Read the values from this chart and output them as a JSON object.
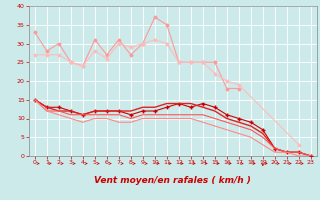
{
  "background_color": "#cceaea",
  "grid_color": "#ffffff",
  "xlabel": "Vent moyen/en rafales ( km/h )",
  "xlabel_color": "#cc0000",
  "xlim": [
    -0.5,
    23.5
  ],
  "ylim": [
    0,
    40
  ],
  "xticks": [
    0,
    1,
    2,
    3,
    4,
    5,
    6,
    7,
    8,
    9,
    10,
    11,
    12,
    13,
    14,
    15,
    16,
    17,
    18,
    19,
    20,
    21,
    22,
    23
  ],
  "yticks": [
    0,
    5,
    10,
    15,
    20,
    25,
    30,
    35,
    40
  ],
  "series": [
    {
      "x": [
        0,
        1,
        2,
        3,
        4,
        5,
        6,
        7,
        8,
        9,
        10,
        11,
        12,
        13,
        14,
        15,
        16,
        17
      ],
      "y": [
        33,
        28,
        30,
        25,
        24,
        31,
        27,
        31,
        27,
        30,
        37,
        35,
        25,
        25,
        25,
        25,
        18,
        18
      ],
      "color": "#ff9999",
      "marker": "D",
      "markersize": 1.5,
      "linewidth": 0.8,
      "linestyle": "-"
    },
    {
      "x": [
        0,
        1,
        2,
        3,
        4,
        5,
        6,
        7,
        8,
        9,
        10,
        11,
        12,
        13,
        14,
        15,
        16,
        17,
        22
      ],
      "y": [
        27,
        27,
        27,
        25,
        24,
        28,
        26,
        30,
        29,
        30,
        31,
        30,
        25,
        25,
        25,
        22,
        20,
        19,
        3
      ],
      "color": "#ffbbbb",
      "marker": "D",
      "markersize": 1.5,
      "linewidth": 0.8,
      "linestyle": "-"
    },
    {
      "x": [
        0,
        1,
        2,
        3,
        4,
        5,
        6,
        7,
        8,
        9,
        10,
        11,
        12,
        13,
        14,
        15,
        16,
        17,
        18,
        19,
        20,
        21,
        22,
        23
      ],
      "y": [
        15,
        13,
        13,
        12,
        11,
        12,
        12,
        12,
        11,
        12,
        12,
        13,
        14,
        13,
        14,
        13,
        11,
        10,
        9,
        7,
        2,
        1,
        1,
        0
      ],
      "color": "#cc0000",
      "marker": "+",
      "markersize": 3,
      "linewidth": 0.8,
      "linestyle": "-"
    },
    {
      "x": [
        0,
        1,
        2,
        3,
        4,
        5,
        6,
        7,
        8,
        9,
        10,
        11,
        12,
        13,
        14,
        15,
        16,
        17,
        18,
        19,
        20,
        21,
        22,
        23
      ],
      "y": [
        15,
        13,
        12,
        12,
        11,
        12,
        12,
        12,
        12,
        13,
        13,
        14,
        14,
        14,
        13,
        12,
        10,
        9,
        8,
        6,
        2,
        1,
        1,
        0
      ],
      "color": "#dd2222",
      "marker": null,
      "markersize": 2,
      "linewidth": 1.0,
      "linestyle": "-"
    },
    {
      "x": [
        0,
        1,
        2,
        3,
        4,
        5,
        6,
        7,
        8,
        9,
        10,
        11,
        12,
        13,
        14,
        15,
        16,
        17,
        18,
        19,
        20,
        21,
        22,
        23
      ],
      "y": [
        15,
        12,
        12,
        11,
        11,
        11,
        11,
        11,
        10,
        11,
        11,
        11,
        11,
        11,
        11,
        10,
        9,
        8,
        7,
        5,
        2,
        1,
        1,
        0
      ],
      "color": "#ff5555",
      "marker": null,
      "markersize": 2,
      "linewidth": 0.8,
      "linestyle": "-"
    },
    {
      "x": [
        0,
        1,
        2,
        3,
        4,
        5,
        6,
        7,
        8,
        9,
        10,
        11,
        12,
        13,
        14,
        15,
        16,
        17,
        18,
        19,
        20,
        21,
        22,
        23
      ],
      "y": [
        15,
        12,
        11,
        10,
        9,
        10,
        10,
        9,
        9,
        10,
        10,
        10,
        10,
        10,
        9,
        8,
        7,
        6,
        5,
        3,
        1,
        1,
        0,
        0
      ],
      "color": "#ff8888",
      "marker": null,
      "markersize": 2,
      "linewidth": 0.8,
      "linestyle": "-"
    }
  ],
  "tick_fontsize": 4.5,
  "xlabel_fontsize": 6.5,
  "spine_color": "#888888"
}
